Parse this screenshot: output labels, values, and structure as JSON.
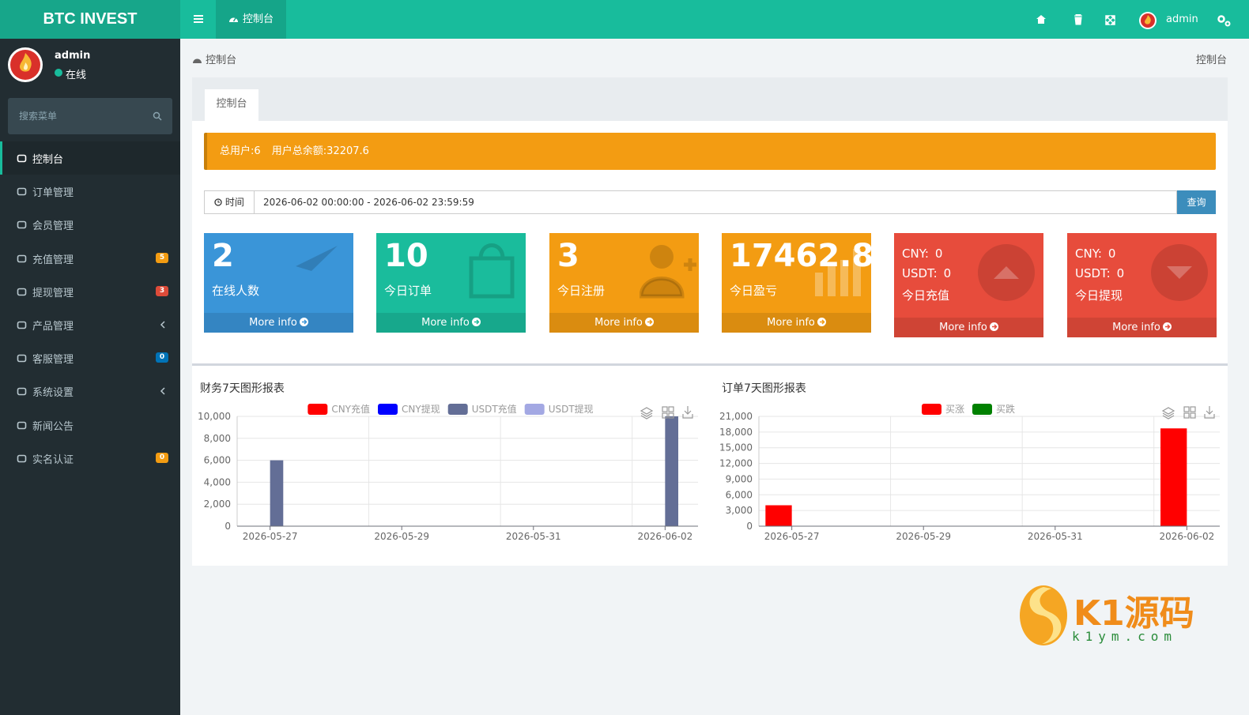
{
  "header": {
    "logo": "BTC INVEST",
    "tab": "控制台",
    "user": "admin"
  },
  "sidebar": {
    "user": "admin",
    "status": "在线",
    "search_placeholder": "搜索菜单",
    "menu": [
      {
        "label": "控制台",
        "active": true
      },
      {
        "label": "订单管理"
      },
      {
        "label": "会员管理"
      },
      {
        "label": "充值管理",
        "badge": 5,
        "badge_color": "#f39c12"
      },
      {
        "label": "提现管理",
        "badge": 3,
        "badge_color": "#dd4b39"
      },
      {
        "label": "产品管理",
        "submenu": true
      },
      {
        "label": "客服管理",
        "badge": 0,
        "badge_color": "#0073b7"
      },
      {
        "label": "系统设置",
        "submenu": true
      },
      {
        "label": "新闻公告"
      },
      {
        "label": "实名认证",
        "badge": 0,
        "badge_color": "#f39c12"
      }
    ]
  },
  "breadcrumb": {
    "left": "控制台",
    "right": "控制台"
  },
  "tab": "控制台",
  "alert": [
    "总用户:6",
    "用户总余额:32207.6"
  ],
  "filter": {
    "label": "时间",
    "value": "2026-06-02 00:00:00 - 2026-06-02 23:59:59",
    "button": "查询"
  },
  "boxes": [
    {
      "value": 2,
      "label": "在线人数",
      "link": "More info",
      "color": "#3a95d8"
    },
    {
      "value": 10,
      "label": "今日订单",
      "link": "More info",
      "color": "#1abc9c"
    },
    {
      "value": 3,
      "label": "今日注册",
      "link": "More info",
      "color": "#f39c12"
    },
    {
      "value": 17462.8,
      "label": "今日盈亏",
      "link": "More info",
      "color": "#f39c12"
    },
    {
      "lines": [
        {
          "label": "CNY:",
          "value": 0
        },
        {
          "label": "USDT:",
          "value": 0
        }
      ],
      "label": "今日充值",
      "link": "More info",
      "color": "#e74c3c"
    },
    {
      "lines": [
        {
          "label": "CNY:",
          "value": 0
        },
        {
          "label": "USDT:",
          "value": 0
        }
      ],
      "label": "今日提现",
      "link": "More info",
      "color": "#e74c3c"
    }
  ],
  "watermark": {
    "brand": "K1源码",
    "url": "k1ym.com"
  },
  "chart_data": [
    {
      "type": "bar",
      "title": "财务7天图形报表",
      "categories": [
        "2026-05-27",
        null,
        "2026-05-29",
        null,
        "2026-05-31",
        null,
        "2026-06-02"
      ],
      "series": [
        {
          "name": "CNY充值",
          "color": "#ff0000",
          "values": [
            0,
            0,
            0,
            0,
            0,
            0,
            0
          ]
        },
        {
          "name": "CNY提现",
          "color": "#0000ff",
          "values": [
            0,
            0,
            0,
            0,
            0,
            0,
            0
          ]
        },
        {
          "name": "USDT充值",
          "color": "#636e96",
          "values": [
            6000,
            0,
            0,
            0,
            0,
            0,
            10000
          ]
        },
        {
          "name": "USDT提现",
          "color": "#a3a8e3",
          "values": [
            0,
            0,
            0,
            0,
            0,
            0,
            0
          ]
        }
      ],
      "ylim": [
        0,
        10000
      ],
      "yticks": [
        0,
        {
          "value": 2000,
          "label": "2,000"
        },
        {
          "value": 4000,
          "label": "4,000"
        },
        {
          "value": 6000,
          "label": "6,000"
        },
        {
          "value": 8000,
          "label": "8,000"
        },
        {
          "value": 10000,
          "label": "10,000"
        }
      ],
      "grid": true,
      "legend": "top"
    },
    {
      "type": "bar",
      "title": "订单7天图形报表",
      "categories": [
        "2026-05-27",
        null,
        "2026-05-29",
        null,
        "2026-05-31",
        null,
        "2026-06-02"
      ],
      "series": [
        {
          "name": "买涨",
          "color": "#ff0000",
          "values": [
            4000,
            0,
            0,
            0,
            0,
            0,
            18700
          ]
        },
        {
          "name": "买跌",
          "color": "#008000",
          "values": [
            0,
            0,
            0,
            0,
            0,
            0,
            0
          ]
        }
      ],
      "ylim": [
        0,
        21000
      ],
      "yticks": [
        0,
        {
          "value": 3000,
          "label": "3,000"
        },
        {
          "value": 6000,
          "label": "6,000"
        },
        {
          "value": 9000,
          "label": "9,000"
        },
        {
          "value": 12000,
          "label": "12,000"
        },
        {
          "value": 15000,
          "label": "15,000"
        },
        {
          "value": 18000,
          "label": "18,000"
        },
        {
          "value": 21000,
          "label": "21,000"
        }
      ],
      "grid": true,
      "legend": "top"
    }
  ]
}
